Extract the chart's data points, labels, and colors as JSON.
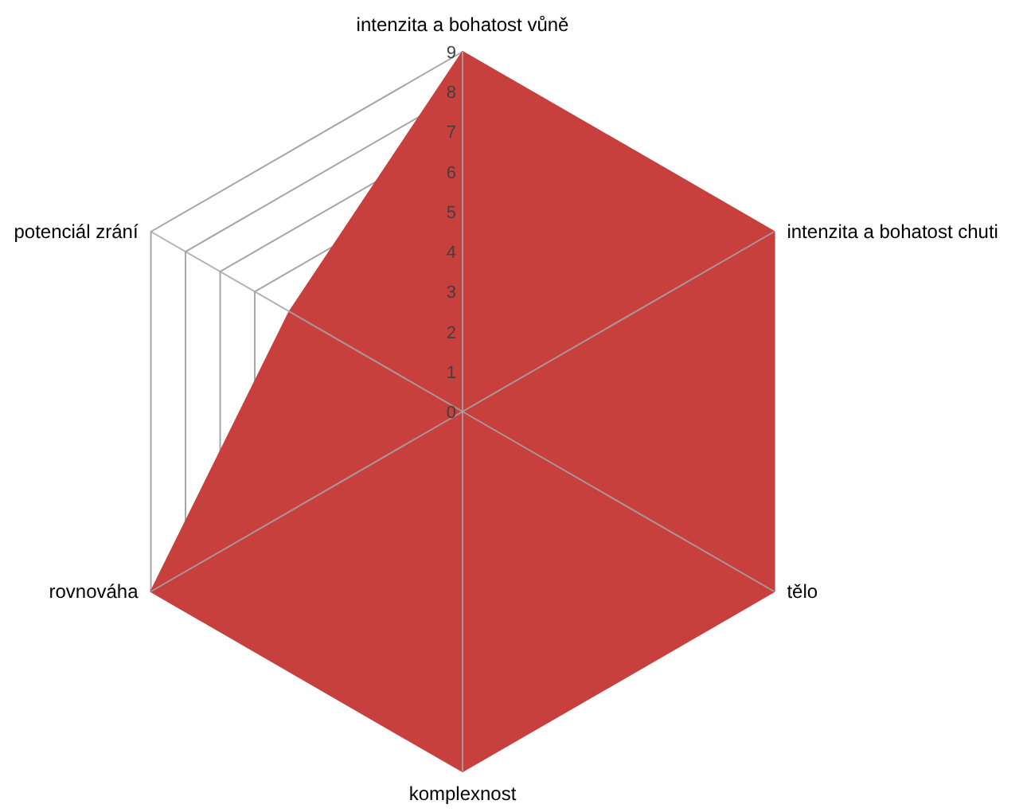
{
  "chart_data": {
    "type": "radar",
    "categories": [
      "intenzita a bohatost vůně",
      "intenzita a bohatost chuti",
      "tělo",
      "komplexnost",
      "rovnováha",
      "potenciál zrání"
    ],
    "series": [
      {
        "color": "#c8403e",
        "values": [
          9,
          9,
          9,
          9,
          9,
          5
        ]
      }
    ],
    "ylim": [
      0,
      9
    ],
    "yticks": [
      0,
      1,
      2,
      3,
      4,
      5,
      6,
      7,
      8,
      9
    ],
    "grid": true
  }
}
